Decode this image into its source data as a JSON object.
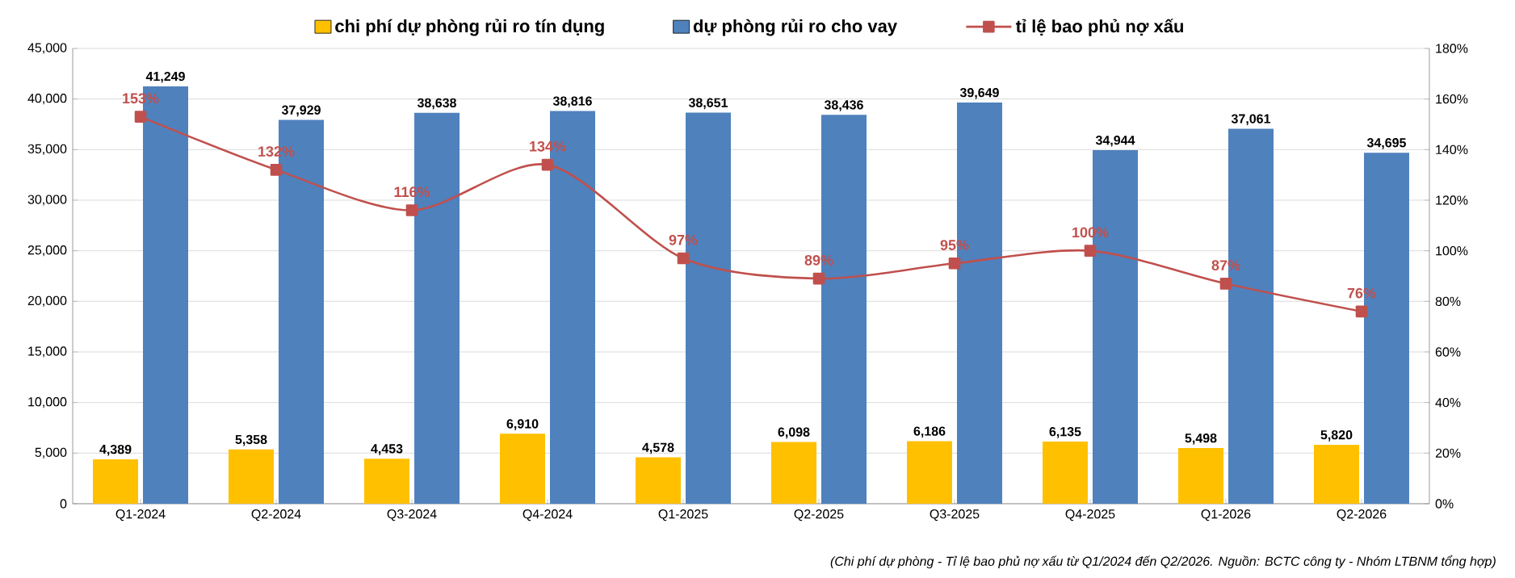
{
  "chart_data": {
    "type": "bar",
    "categories": [
      "Q1-2024",
      "Q2-2024",
      "Q3-2024",
      "Q4-2024",
      "Q1-2025",
      "Q2-2025",
      "Q3-2025",
      "Q4-2025",
      "Q1-2026",
      "Q2-2026"
    ],
    "series": [
      {
        "name": "chi phí dự phòng rủi ro tín dụng",
        "color": "#ffc000",
        "values": [
          4389,
          5358,
          4453,
          6910,
          4578,
          6098,
          6186,
          6135,
          5498,
          5820
        ],
        "value_labels": [
          "4,389",
          "5,358",
          "4,453",
          "6,910",
          "4,578",
          "6,098",
          "6,186",
          "6,135",
          "5,498",
          "5,820"
        ]
      },
      {
        "name": "dự phòng rủi ro cho vay",
        "color": "#4f81bd",
        "values": [
          41249,
          37929,
          38638,
          38816,
          38651,
          38436,
          39649,
          34944,
          37061,
          34695
        ],
        "value_labels": [
          "41,249",
          "37,929",
          "38,638",
          "38,816",
          "38,651",
          "38,436",
          "39,649",
          "34,944",
          "37,061",
          "34,695"
        ]
      },
      {
        "name": "tỉ lệ bao phủ nợ xấu",
        "type": "line",
        "axis": "y2",
        "marker": "square",
        "color": "#c0504d",
        "values": [
          153,
          132,
          116,
          134,
          97,
          89,
          95,
          100,
          87,
          76
        ],
        "value_labels": [
          "153%",
          "132%",
          "116%",
          "134%",
          "97%",
          "89%",
          "95%",
          "100%",
          "87%",
          "76%"
        ]
      }
    ],
    "ylim": [
      0,
      45000
    ],
    "yticks": [
      {
        "value": 0,
        "label": "0"
      },
      {
        "value": 5000,
        "label": "5,000"
      },
      {
        "value": 10000,
        "label": "10,000"
      },
      {
        "value": 15000,
        "label": "15,000"
      },
      {
        "value": 20000,
        "label": "20,000"
      },
      {
        "value": 25000,
        "label": "25,000"
      },
      {
        "value": 30000,
        "label": "30,000"
      },
      {
        "value": 35000,
        "label": "35,000"
      },
      {
        "value": 40000,
        "label": "40,000"
      },
      {
        "value": 45000,
        "label": "45,000"
      }
    ],
    "y2lim": [
      0,
      180
    ],
    "y2ticks": [
      {
        "value": 0,
        "label": "0%"
      },
      {
        "value": 20,
        "label": "20%"
      },
      {
        "value": 40,
        "label": "40%"
      },
      {
        "value": 60,
        "label": "60%"
      },
      {
        "value": 80,
        "label": "80%"
      },
      {
        "value": 100,
        "label": "100%"
      },
      {
        "value": 120,
        "label": "120%"
      },
      {
        "value": 140,
        "label": "140%"
      },
      {
        "value": 160,
        "label": "160%"
      },
      {
        "value": 180,
        "label": "180%"
      }
    ],
    "grid": "y",
    "legend": "top",
    "annotations": [
      "(Chi phí dự phòng - Tỉ lệ bao phủ nợ xấu từ Q1/2024 đến Q2/2026. Nguồn: BCTC công ty - Nhóm LTBNM tổng hợp)"
    ]
  }
}
